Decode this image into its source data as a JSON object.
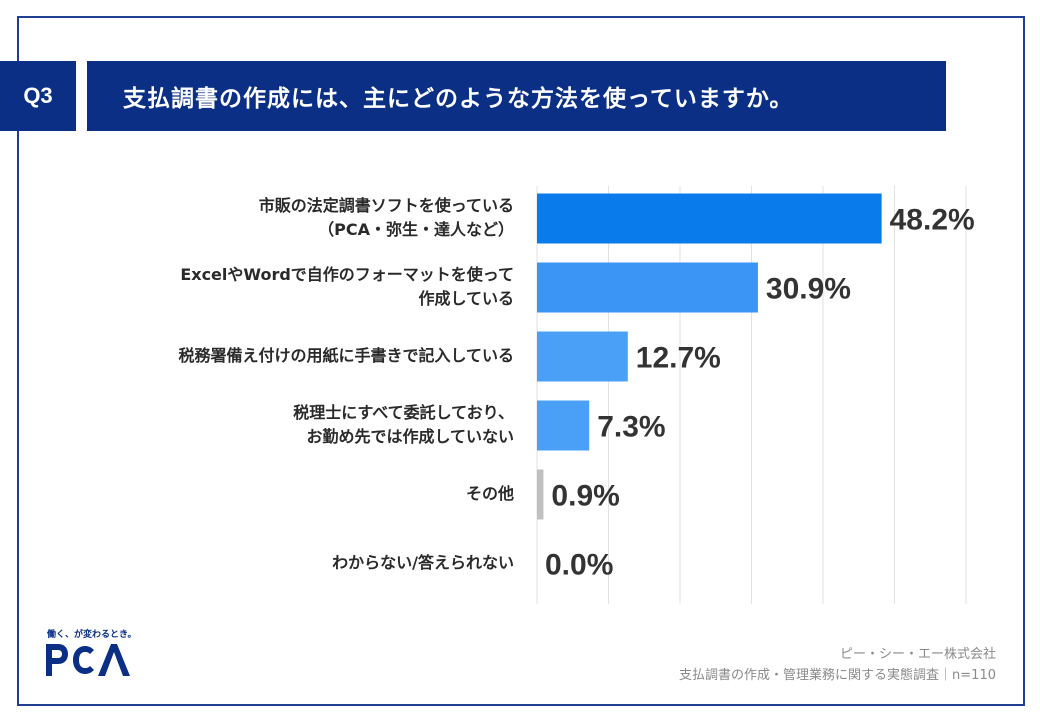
{
  "header": {
    "question_number": "Q3",
    "title": "支払調書の作成には、主にどのような方法を使っていますか。"
  },
  "chart_data": {
    "type": "bar",
    "orientation": "horizontal",
    "categories": [
      [
        "市販の法定調書ソフトを使っている",
        "（PCA・弥生・達人など）"
      ],
      [
        "ExcelやWordで自作のフォーマットを使って",
        "作成している"
      ],
      [
        "税務署備え付けの用紙に手書きで記入している"
      ],
      [
        "税理士にすべて委託しており、",
        "お勤め先では作成していない"
      ],
      [
        "その他"
      ],
      [
        "わからない/答えられない"
      ]
    ],
    "values": [
      48.2,
      30.9,
      12.7,
      7.3,
      0.9,
      0.0
    ],
    "value_labels": [
      "48.2%",
      "30.9%",
      "12.7%",
      "7.3%",
      "0.9%",
      "0.0%"
    ],
    "bar_colors": [
      "#0a7bea",
      "#3a95f5",
      "#4aa0f7",
      "#4aa0f7",
      "#c0c0c0",
      "#c0c0c0"
    ],
    "xlim": [
      0,
      60
    ],
    "grid": true
  },
  "branding": {
    "tagline": "働く、が変わるとき。",
    "logo_text": "PCA",
    "color": "#0a2f85"
  },
  "footer": {
    "company": "ピー・シー・エー株式会社",
    "survey": "支払調書の作成・管理業務に関する実態調査｜n=110"
  }
}
